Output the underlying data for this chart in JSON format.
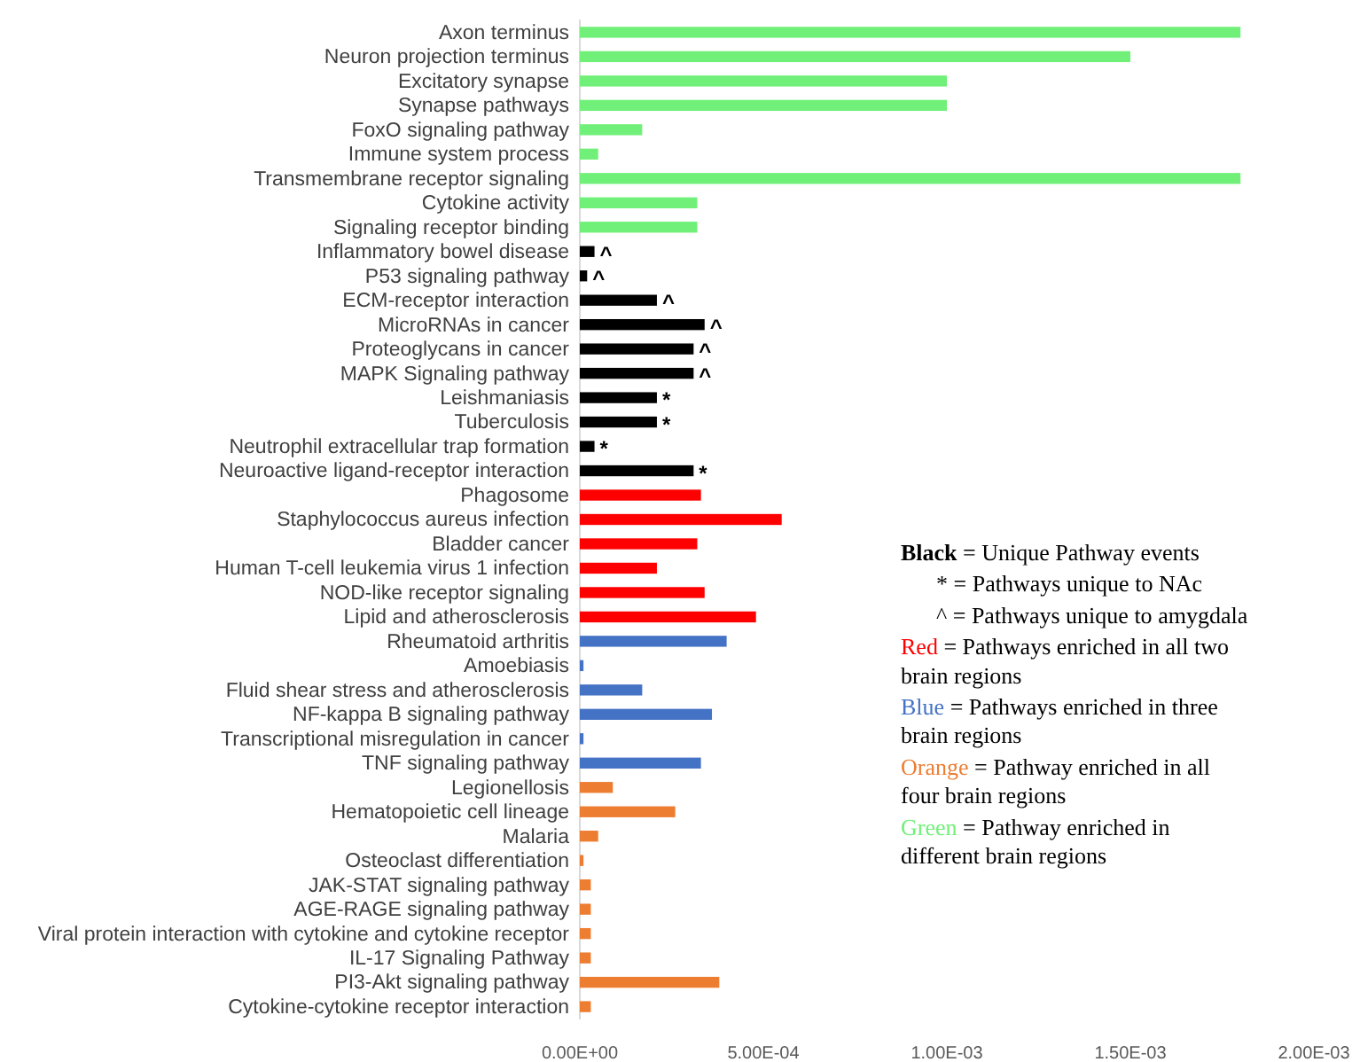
{
  "chart_data": {
    "type": "bar",
    "orientation": "horizontal",
    "legend": "right",
    "grid": false,
    "categories": [
      "Axon terminus",
      "Neuron projection terminus",
      "Excitatory synapse",
      "Synapse pathways",
      "FoxO signaling pathway",
      "Immune system process",
      "Transmembrane receptor signaling",
      "Cytokine activity",
      "Signaling receptor binding",
      "Inflammatory bowel disease",
      "P53 signaling pathway",
      "ECM-receptor interaction",
      "MicroRNAs in cancer",
      "Proteoglycans in cancer",
      "MAPK Signaling pathway",
      "Leishmaniasis",
      "Tuberculosis",
      "Neutrophil extracellular trap formation",
      "Neuroactive ligand-receptor interaction",
      "Phagosome",
      "Staphylococcus aureus infection",
      "Bladder cancer",
      "Human T-cell leukemia virus 1 infection",
      "NOD-like receptor signaling",
      "Lipid and atherosclerosis",
      "Rheumatoid arthritis",
      "Amoebiasis",
      "Fluid shear stress and atherosclerosis",
      "NF-kappa B signaling pathway",
      "Transcriptional misregulation in cancer",
      "TNF signaling pathway",
      "Legionellosis",
      "Hematopoietic cell lineage",
      "Malaria",
      "Osteoclast differentiation",
      "JAK-STAT signaling pathway",
      "AGE-RAGE signaling pathway",
      "Viral protein interaction with cytokine and cytokine receptor",
      "IL-17 Signaling Pathway",
      "PI3-Akt signaling pathway",
      "Cytokine-cytokine receptor interaction"
    ],
    "xlim": [
      0,
      0.002
    ],
    "xticks": [
      {
        "value": 0,
        "label": "0.00E+00"
      },
      {
        "value": 0.0005,
        "label": "5.00E-04"
      },
      {
        "value": 0.001,
        "label": "1.00E-03"
      },
      {
        "value": 0.0015,
        "label": "1.50E-03"
      },
      {
        "value": 0.002,
        "label": "2.00E-03"
      }
    ],
    "series": [
      {
        "name": "Black = Unique Pathway events",
        "color": "#000000",
        "values": [
          null,
          null,
          null,
          null,
          null,
          null,
          null,
          null,
          null,
          4e-05,
          2e-05,
          0.00021,
          0.00034,
          0.00031,
          0.00031,
          0.00021,
          0.00021,
          4e-05,
          0.00031,
          null,
          null,
          null,
          null,
          null,
          null,
          null,
          null,
          null,
          null,
          null,
          null,
          null,
          null,
          null,
          null,
          null,
          null,
          null,
          null,
          null,
          null
        ],
        "value_labels": [
          null,
          null,
          null,
          null,
          null,
          null,
          null,
          null,
          null,
          "^",
          "^",
          "^",
          "^",
          "^",
          "^",
          "*",
          "*",
          "*",
          "*",
          null,
          null,
          null,
          null,
          null,
          null,
          null,
          null,
          null,
          null,
          null,
          null,
          null,
          null,
          null,
          null,
          null,
          null,
          null,
          null,
          null,
          null
        ]
      },
      {
        "name": "Red = Pathways enriched in all two brain regions",
        "color": "#ff0000",
        "values": [
          null,
          null,
          null,
          null,
          null,
          null,
          null,
          null,
          null,
          null,
          null,
          null,
          null,
          null,
          null,
          null,
          null,
          null,
          null,
          0.00033,
          0.00055,
          0.00032,
          0.00021,
          0.00034,
          0.00048,
          null,
          null,
          null,
          null,
          null,
          null,
          null,
          null,
          null,
          null,
          null,
          null,
          null,
          null,
          null,
          null
        ]
      },
      {
        "name": "Blue = Pathways enriched in three brain regions",
        "color": "#4472c4",
        "values": [
          null,
          null,
          null,
          null,
          null,
          null,
          null,
          null,
          null,
          null,
          null,
          null,
          null,
          null,
          null,
          null,
          null,
          null,
          null,
          null,
          null,
          null,
          null,
          null,
          null,
          0.0004,
          1e-05,
          0.00017,
          0.00036,
          1e-05,
          0.00033,
          null,
          null,
          null,
          null,
          null,
          null,
          null,
          null,
          null,
          null
        ]
      },
      {
        "name": "Orange = Pathway enriched in all four brain regions",
        "color": "#ed7d31",
        "values": [
          null,
          null,
          null,
          null,
          null,
          null,
          null,
          null,
          null,
          null,
          null,
          null,
          null,
          null,
          null,
          null,
          null,
          null,
          null,
          null,
          null,
          null,
          null,
          null,
          null,
          null,
          null,
          null,
          null,
          null,
          null,
          9e-05,
          0.00026,
          5e-05,
          1e-05,
          3e-05,
          3e-05,
          3e-05,
          3e-05,
          0.00038,
          3e-05
        ]
      },
      {
        "name": "Green = Pathway enriched in different brain regions",
        "color": "#70f078",
        "values": [
          0.0018,
          0.0015,
          0.001,
          0.001,
          0.00017,
          5e-05,
          0.0018,
          0.00032,
          0.00032,
          null,
          null,
          null,
          null,
          null,
          null,
          null,
          null,
          null,
          null,
          null,
          null,
          null,
          null,
          null,
          null,
          null,
          null,
          null,
          null,
          null,
          null,
          null,
          null,
          null,
          null,
          null,
          null,
          null,
          null,
          null,
          null
        ]
      }
    ],
    "annotations": [
      "* = Pathways unique to NAc",
      "^ = Pathways unique to amygdala"
    ]
  }
}
